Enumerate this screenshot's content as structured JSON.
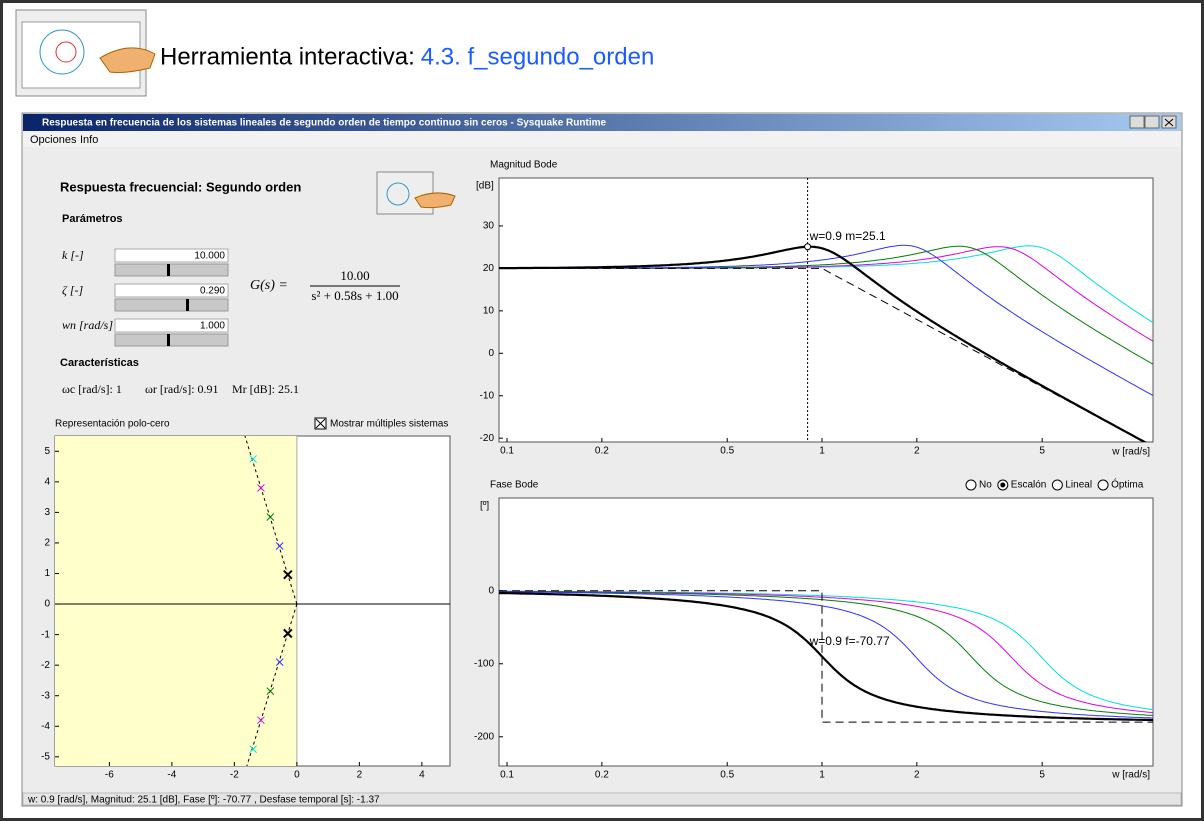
{
  "header": {
    "label": "Herramienta interactiva:",
    "link": "4.3. f_segundo_orden"
  },
  "window": {
    "title": "Respuesta en frecuencia de los sistemas lineales de segundo orden de tiempo continuo sin ceros - Sysquake Runtime",
    "menu": [
      "Opciones",
      "Info"
    ],
    "status": "w: 0.9 [rad/s], Magnitud: 25.1 [dB], Fase [º]: -70.77 , Desfase temporal [s]: -1.37"
  },
  "panel": {
    "title": "Respuesta frecuencial: Segundo orden",
    "params_title": "Parámetros",
    "params": [
      {
        "label": "k [-]",
        "field": {
          "value": 10,
          "label": "10.000"
        }
      },
      {
        "label": "ζ [-]",
        "field": {
          "value": 0.29,
          "label": "0.290"
        }
      },
      {
        "label": "wn [rad/s]",
        "field": {
          "value": 1,
          "label": "1.000"
        }
      }
    ],
    "transfer": {
      "lhs": "G(s) =",
      "numerator": "10.00",
      "denominator": "s² + 0.58s + 1.00"
    },
    "char_title": "Características",
    "characteristics": [
      "ωc [rad/s]: 1",
      "ωr [rad/s]: 0.91",
      "Mr [dB]: 25.1"
    ]
  },
  "pole_zero": {
    "title": "Representación polo-cero",
    "checkbox": "Mostrar múltiples sistemas",
    "xlim": [
      -7.74,
      4.9
    ],
    "ylim": [
      -5.3,
      5.5
    ],
    "xticks": [
      -6,
      -4,
      -2,
      0,
      2,
      4
    ],
    "yticks": [
      -5,
      -4,
      -3,
      -2,
      -1,
      0,
      1,
      2,
      3,
      4,
      5
    ],
    "poles": [
      {
        "color": "#00e0e0",
        "re": -1.4,
        "im": 4.75
      },
      {
        "color": "#e000e0",
        "re": -1.15,
        "im": 3.8
      },
      {
        "color": "#008000",
        "re": -0.85,
        "im": 2.85
      },
      {
        "color": "#3030ff",
        "re": -0.55,
        "im": 1.9
      },
      {
        "color": "#000000",
        "re": -0.29,
        "im": 0.96
      }
    ]
  },
  "magnitude": {
    "title": "Magnitud Bode",
    "unit": "[dB]",
    "xlabel": "w [rad/s]",
    "log_x": true,
    "xlim": [
      0.0943,
      11.24
    ],
    "ylim": [
      -20.9,
      41.3
    ],
    "xticks": [
      0.1,
      0.2,
      0.5,
      1,
      2,
      5
    ],
    "yticks": [
      -20,
      -10,
      0,
      10,
      20,
      30
    ],
    "cursor": 0.9,
    "annotation": "w=0.9 m=25.1"
  },
  "phase": {
    "title": "Fase Bode",
    "unit": "[º]",
    "xlabel": "w [rad/s]",
    "log_x": true,
    "xlim": [
      0.0943,
      11.24
    ],
    "ylim": [
      -240,
      127
    ],
    "xticks": [
      0.1,
      0.2,
      0.5,
      1,
      2,
      5
    ],
    "yticks": [
      -200,
      -100,
      0
    ],
    "annotation": "w=0.9  f=-70.77",
    "options": [
      "No",
      "Escalón",
      "Lineal",
      "Óptima"
    ],
    "selected": 1
  }
}
